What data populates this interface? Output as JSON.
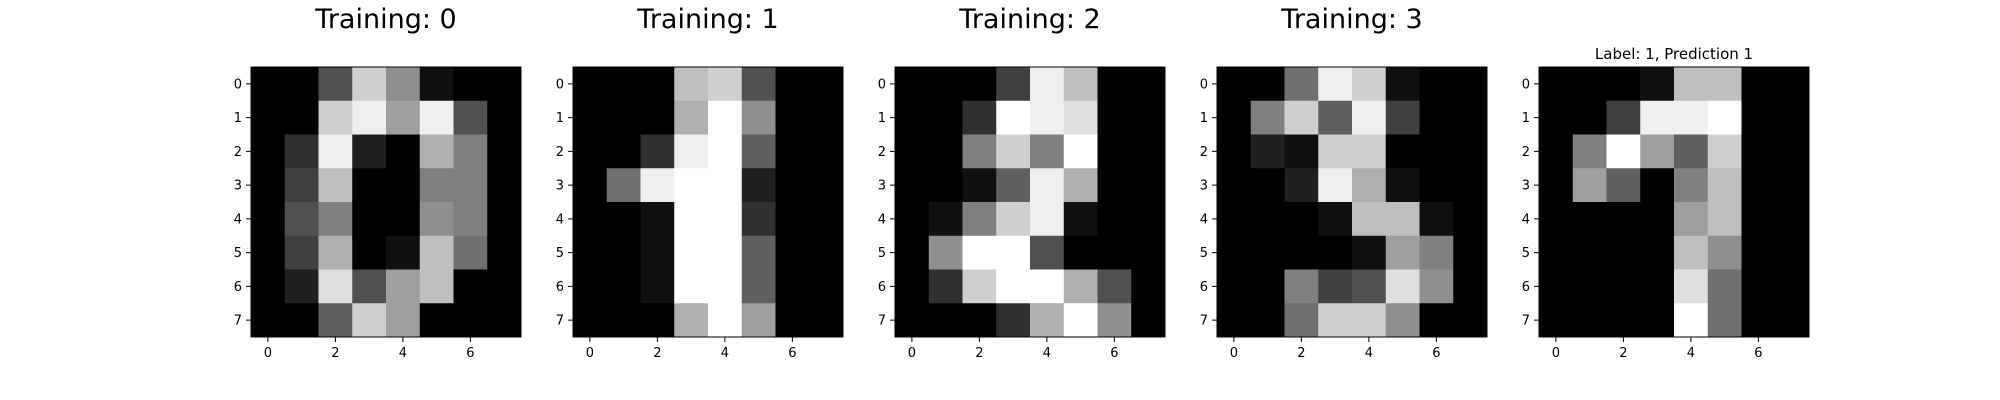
{
  "chart_data": [
    {
      "type": "heatmap",
      "title": "Training: 0",
      "colormap": "gray",
      "xticks": [
        "0",
        "2",
        "4",
        "6"
      ],
      "yticks": [
        "0",
        "1",
        "2",
        "3",
        "4",
        "5",
        "6",
        "7"
      ],
      "values": [
        [
          0,
          0,
          5,
          13,
          9,
          1,
          0,
          0
        ],
        [
          0,
          0,
          13,
          15,
          10,
          15,
          5,
          0
        ],
        [
          0,
          3,
          15,
          2,
          0,
          11,
          8,
          0
        ],
        [
          0,
          4,
          12,
          0,
          0,
          8,
          8,
          0
        ],
        [
          0,
          5,
          8,
          0,
          0,
          9,
          8,
          0
        ],
        [
          0,
          4,
          11,
          0,
          1,
          12,
          7,
          0
        ],
        [
          0,
          2,
          14,
          5,
          10,
          12,
          0,
          0
        ],
        [
          0,
          0,
          6,
          13,
          10,
          0,
          0,
          0
        ]
      ]
    },
    {
      "type": "heatmap",
      "title": "Training: 1",
      "colormap": "gray",
      "xticks": [
        "0",
        "2",
        "4",
        "6"
      ],
      "yticks": [
        "0",
        "1",
        "2",
        "3",
        "4",
        "5",
        "6",
        "7"
      ],
      "values": [
        [
          0,
          0,
          0,
          12,
          13,
          5,
          0,
          0
        ],
        [
          0,
          0,
          0,
          11,
          16,
          9,
          0,
          0
        ],
        [
          0,
          0,
          3,
          15,
          16,
          6,
          0,
          0
        ],
        [
          0,
          7,
          15,
          16,
          16,
          2,
          0,
          0
        ],
        [
          0,
          0,
          1,
          16,
          16,
          3,
          0,
          0
        ],
        [
          0,
          0,
          1,
          16,
          16,
          6,
          0,
          0
        ],
        [
          0,
          0,
          1,
          16,
          16,
          6,
          0,
          0
        ],
        [
          0,
          0,
          0,
          11,
          16,
          10,
          0,
          0
        ]
      ]
    },
    {
      "type": "heatmap",
      "title": "Training: 2",
      "colormap": "gray",
      "xticks": [
        "0",
        "2",
        "4",
        "6"
      ],
      "yticks": [
        "0",
        "1",
        "2",
        "3",
        "4",
        "5",
        "6",
        "7"
      ],
      "values": [
        [
          0,
          0,
          0,
          4,
          15,
          12,
          0,
          0
        ],
        [
          0,
          0,
          3,
          16,
          15,
          14,
          0,
          0
        ],
        [
          0,
          0,
          8,
          13,
          8,
          16,
          0,
          0
        ],
        [
          0,
          0,
          1,
          6,
          15,
          11,
          0,
          0
        ],
        [
          0,
          1,
          8,
          13,
          15,
          1,
          0,
          0
        ],
        [
          0,
          9,
          16,
          16,
          5,
          0,
          0,
          0
        ],
        [
          0,
          3,
          13,
          16,
          16,
          11,
          5,
          0
        ],
        [
          0,
          0,
          0,
          3,
          11,
          16,
          9,
          0
        ]
      ]
    },
    {
      "type": "heatmap",
      "title": "Training: 3",
      "colormap": "gray",
      "xticks": [
        "0",
        "2",
        "4",
        "6"
      ],
      "yticks": [
        "0",
        "1",
        "2",
        "3",
        "4",
        "5",
        "6",
        "7"
      ],
      "values": [
        [
          0,
          0,
          7,
          15,
          13,
          1,
          0,
          0
        ],
        [
          0,
          8,
          13,
          6,
          15,
          4,
          0,
          0
        ],
        [
          0,
          2,
          1,
          13,
          13,
          0,
          0,
          0
        ],
        [
          0,
          0,
          2,
          15,
          11,
          1,
          0,
          0
        ],
        [
          0,
          0,
          0,
          1,
          12,
          12,
          1,
          0
        ],
        [
          0,
          0,
          0,
          0,
          1,
          10,
          8,
          0
        ],
        [
          0,
          0,
          8,
          4,
          5,
          14,
          9,
          0
        ],
        [
          0,
          0,
          7,
          13,
          13,
          9,
          0,
          0
        ]
      ]
    },
    {
      "type": "heatmap",
      "title": "Label: 1, Prediction 1",
      "colormap": "gray",
      "xticks": [
        "0",
        "2",
        "4",
        "6"
      ],
      "yticks": [
        "0",
        "1",
        "2",
        "3",
        "4",
        "5",
        "6",
        "7"
      ],
      "values": [
        [
          0,
          0,
          0,
          1,
          12,
          12,
          0,
          0
        ],
        [
          0,
          0,
          4,
          15,
          15,
          16,
          0,
          0
        ],
        [
          0,
          8,
          16,
          10,
          6,
          13,
          0,
          0
        ],
        [
          0,
          10,
          6,
          0,
          8,
          12,
          0,
          0
        ],
        [
          0,
          0,
          0,
          0,
          10,
          12,
          0,
          0
        ],
        [
          0,
          0,
          0,
          0,
          12,
          9,
          0,
          0
        ],
        [
          0,
          0,
          0,
          0,
          14,
          7,
          0,
          0
        ],
        [
          0,
          0,
          0,
          0,
          16,
          7,
          0,
          0
        ]
      ]
    }
  ]
}
